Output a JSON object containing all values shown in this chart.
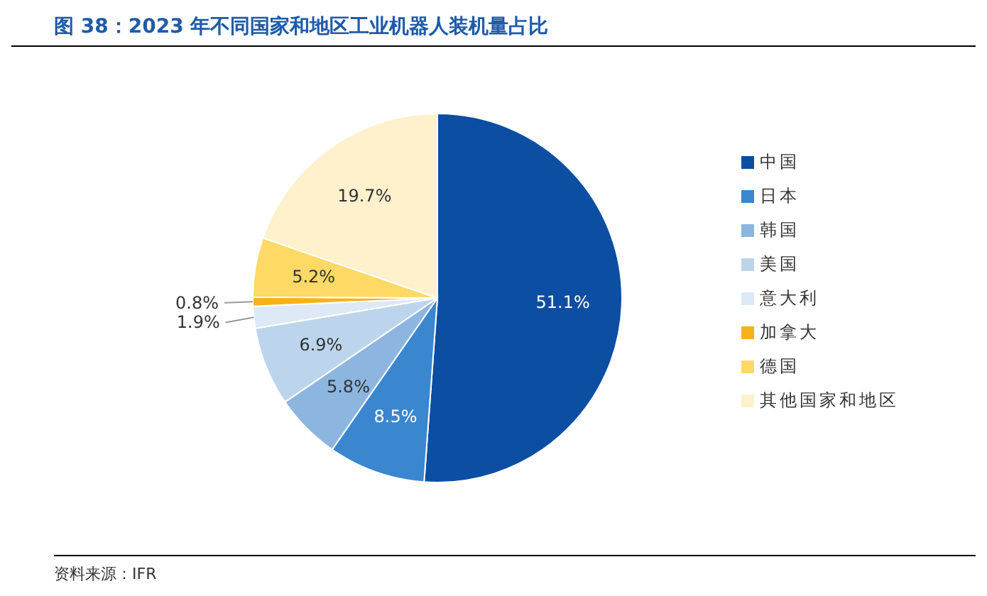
{
  "chart_data": {
    "type": "pie",
    "title": "图 38：2023 年不同国家和地区工业机器人装机量占比",
    "categories": [
      "中国",
      "日本",
      "韩国",
      "美国",
      "意大利",
      "加拿大",
      "德国",
      "其他国家和地区"
    ],
    "values": [
      51.1,
      8.5,
      5.8,
      6.9,
      1.9,
      0.8,
      5.2,
      19.7
    ],
    "colors": [
      "#0b4ea2",
      "#3a87d0",
      "#8cb6e0",
      "#bcd5ec",
      "#dde9f5",
      "#f5b21b",
      "#ffd966",
      "#fff1cc"
    ],
    "value_labels": [
      "51.1%",
      "8.5%",
      "5.8%",
      "6.9%",
      "1.9%",
      "0.8%",
      "5.2%",
      "19.7%"
    ],
    "legend": "right",
    "annotations": [
      "资料来源：IFR"
    ]
  }
}
